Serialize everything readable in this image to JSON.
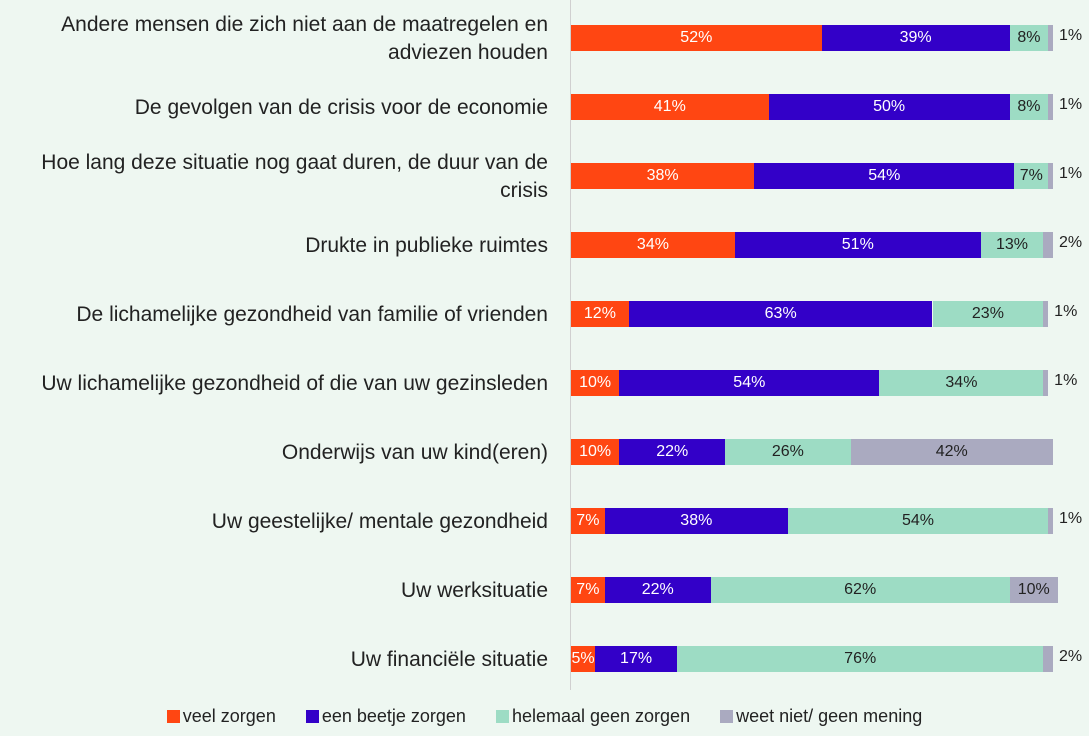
{
  "chart_data": {
    "type": "stacked-bar-horizontal",
    "categories": [
      "Andere mensen die zich niet aan de maatregelen en adviezen houden",
      "De gevolgen van de crisis voor de economie",
      "Hoe lang deze situatie nog gaat duren, de duur van de crisis",
      "Drukte in publieke ruimtes",
      "De lichamelijke gezondheid van familie of vrienden",
      "Uw lichamelijke gezondheid of die van uw gezinsleden",
      "Onderwijs van uw kind(eren)",
      "Uw geestelijke/ mentale gezondheid",
      "Uw werksituatie",
      "Uw financiële situatie"
    ],
    "xlim": [
      0,
      100
    ],
    "series": [
      {
        "name": "veel zorgen",
        "color": "#ff4612",
        "values": [
          52,
          41,
          38,
          34,
          12,
          10,
          10,
          7,
          7,
          5
        ],
        "value_labels": [
          "52%",
          "41%",
          "38%",
          "34%",
          "12%",
          "10%",
          "10%",
          "7%",
          "7%",
          "5%"
        ]
      },
      {
        "name": "een beetje zorgen",
        "color": "#3300c8",
        "values": [
          39,
          50,
          54,
          51,
          63,
          54,
          22,
          38,
          22,
          17
        ],
        "value_labels": [
          "39%",
          "50%",
          "54%",
          "51%",
          "63%",
          "54%",
          "22%",
          "38%",
          "22%",
          "17%"
        ]
      },
      {
        "name": "helemaal geen zorgen",
        "color": "#9ddcc4",
        "values": [
          8,
          8,
          7,
          13,
          23,
          34,
          26,
          54,
          62,
          76
        ],
        "value_labels": [
          "8%",
          "8%",
          "7%",
          "13%",
          "23%",
          "34%",
          "26%",
          "54%",
          "62%",
          "76%"
        ]
      },
      {
        "name": "weet niet/ geen mening",
        "color": "#aaaac0",
        "values": [
          1,
          1,
          1,
          2,
          1,
          1,
          42,
          1,
          10,
          2
        ],
        "value_labels": [
          "1%",
          "1%",
          "1%",
          "2%",
          "1%",
          "1%",
          "42%",
          "1%",
          "10%",
          "2%"
        ]
      }
    ]
  }
}
